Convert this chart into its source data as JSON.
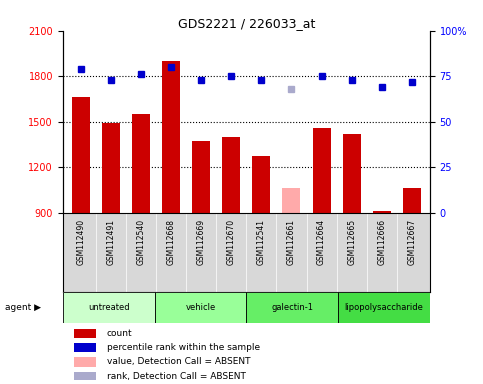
{
  "title": "GDS2221 / 226033_at",
  "samples": [
    "GSM112490",
    "GSM112491",
    "GSM112540",
    "GSM112668",
    "GSM112669",
    "GSM112670",
    "GSM112541",
    "GSM112661",
    "GSM112664",
    "GSM112665",
    "GSM112666",
    "GSM112667"
  ],
  "counts": [
    1660,
    1490,
    1550,
    1900,
    1370,
    1400,
    1270,
    1060,
    1460,
    1420,
    910,
    1060
  ],
  "counts_absent": [
    false,
    false,
    false,
    false,
    false,
    false,
    false,
    true,
    false,
    false,
    false,
    false
  ],
  "percentile_ranks": [
    79,
    73,
    76,
    80,
    73,
    75,
    73,
    68,
    75,
    73,
    69,
    72
  ],
  "ranks_absent": [
    false,
    false,
    false,
    false,
    false,
    false,
    false,
    true,
    false,
    false,
    false,
    false
  ],
  "groups": [
    {
      "label": "untreated",
      "start": 0,
      "end": 3,
      "color": "#ccffcc"
    },
    {
      "label": "vehicle",
      "start": 3,
      "end": 6,
      "color": "#99ff99"
    },
    {
      "label": "galectin-1",
      "start": 6,
      "end": 9,
      "color": "#66ee66"
    },
    {
      "label": "lipopolysaccharide",
      "start": 9,
      "end": 12,
      "color": "#44dd44"
    }
  ],
  "ylim_left": [
    900,
    2100
  ],
  "ylim_right": [
    0,
    100
  ],
  "yticks_left": [
    900,
    1200,
    1500,
    1800,
    2100
  ],
  "yticks_right": [
    0,
    25,
    50,
    75,
    100
  ],
  "bar_color_normal": "#cc0000",
  "bar_color_absent": "#ffaaaa",
  "rank_color_normal": "#0000cc",
  "rank_color_absent": "#aaaacc",
  "legend": [
    {
      "label": "count",
      "color": "#cc0000"
    },
    {
      "label": "percentile rank within the sample",
      "color": "#0000cc"
    },
    {
      "label": "value, Detection Call = ABSENT",
      "color": "#ffaaaa"
    },
    {
      "label": "rank, Detection Call = ABSENT",
      "color": "#aaaacc"
    }
  ]
}
